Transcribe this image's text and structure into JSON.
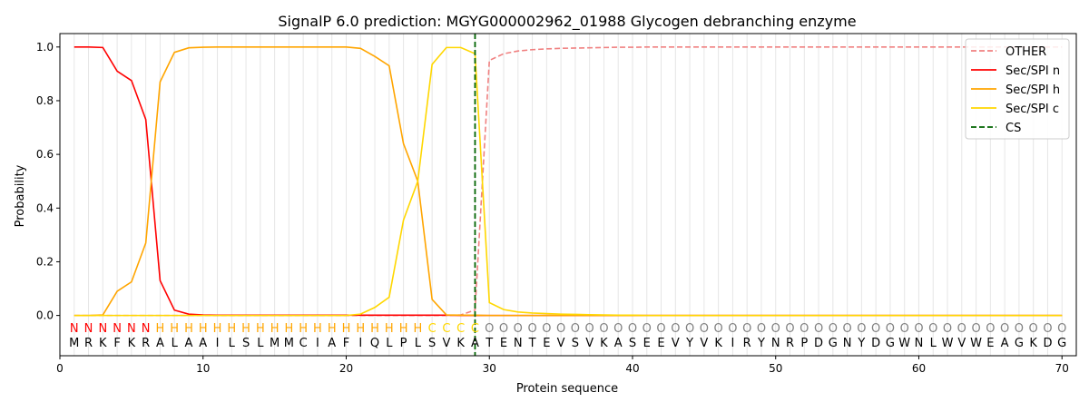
{
  "chart_data": {
    "type": "line",
    "title": "SignalP 6.0 prediction: MGYG000002962_01988 Glycogen debranching enzyme",
    "xlabel": "Protein sequence",
    "ylabel": "Probability",
    "xlim": [
      0,
      71
    ],
    "ylim": [
      -0.15,
      1.05
    ],
    "xticks": [
      0,
      10,
      20,
      30,
      40,
      50,
      60,
      70
    ],
    "yticks": [
      0.0,
      0.2,
      0.4,
      0.6,
      0.8,
      1.0
    ],
    "grid": "vertical lines at each residue",
    "legend_placement": "top-right",
    "x": [
      1,
      2,
      3,
      4,
      5,
      6,
      7,
      8,
      9,
      10,
      11,
      12,
      13,
      14,
      15,
      16,
      17,
      18,
      19,
      20,
      21,
      22,
      23,
      24,
      25,
      26,
      27,
      28,
      29,
      30,
      31,
      32,
      33,
      34,
      35,
      36,
      37,
      38,
      39,
      40,
      41,
      42,
      43,
      44,
      45,
      46,
      47,
      48,
      49,
      50,
      51,
      52,
      53,
      54,
      55,
      56,
      57,
      58,
      59,
      60,
      61,
      62,
      63,
      64,
      65,
      66,
      67,
      68,
      69,
      70
    ],
    "sequence": [
      "M",
      "R",
      "K",
      "F",
      "K",
      "R",
      "A",
      "L",
      "A",
      "A",
      "I",
      "L",
      "S",
      "L",
      "M",
      "M",
      "C",
      "I",
      "A",
      "F",
      "I",
      "Q",
      "L",
      "P",
      "L",
      "S",
      "V",
      "K",
      "A",
      "T",
      "E",
      "N",
      "T",
      "E",
      "V",
      "S",
      "V",
      "K",
      "A",
      "S",
      "E",
      "E",
      "V",
      "Y",
      "V",
      "K",
      "I",
      "R",
      "Y",
      "N",
      "R",
      "P",
      "D",
      "G",
      "N",
      "Y",
      "D",
      "G",
      "W",
      "N",
      "L",
      "W",
      "V",
      "W",
      "E",
      "A",
      "G",
      "K",
      "D",
      "G"
    ],
    "labels": [
      "N",
      "N",
      "N",
      "N",
      "N",
      "N",
      "H",
      "H",
      "H",
      "H",
      "H",
      "H",
      "H",
      "H",
      "H",
      "H",
      "H",
      "H",
      "H",
      "H",
      "H",
      "H",
      "H",
      "H",
      "H",
      "C",
      "C",
      "C",
      "C",
      "O",
      "O",
      "O",
      "O",
      "O",
      "O",
      "O",
      "O",
      "O",
      "O",
      "O",
      "O",
      "O",
      "O",
      "O",
      "O",
      "O",
      "O",
      "O",
      "O",
      "O",
      "O",
      "O",
      "O",
      "O",
      "O",
      "O",
      "O",
      "O",
      "O",
      "O",
      "O",
      "O",
      "O",
      "O",
      "O",
      "O",
      "O",
      "O",
      "O",
      "O"
    ],
    "label_colors": {
      "N": "#ff0000",
      "H": "#ffa500",
      "C": "#ffd700",
      "O": "#808080"
    },
    "series": [
      {
        "name": "OTHER",
        "color": "#f08080",
        "style": "dashed",
        "values": [
          0,
          0,
          0,
          0,
          0,
          0,
          0,
          0,
          0,
          0,
          0,
          0,
          0,
          0,
          0,
          0,
          0,
          0,
          0,
          0,
          0,
          0,
          0,
          0,
          0,
          0,
          0,
          0.002,
          0.02,
          0.95,
          0.975,
          0.985,
          0.99,
          0.993,
          0.995,
          0.996,
          0.997,
          0.998,
          0.999,
          0.999,
          1,
          1,
          1,
          1,
          1,
          1,
          1,
          1,
          1,
          1,
          1,
          1,
          1,
          1,
          1,
          1,
          1,
          1,
          1,
          1,
          1,
          1,
          1,
          1,
          1,
          1,
          1,
          1,
          1,
          1
        ]
      },
      {
        "name": "Sec/SPI n",
        "color": "#ff0000",
        "style": "solid",
        "values": [
          1.0,
          1.0,
          0.998,
          0.91,
          0.875,
          0.73,
          0.13,
          0.02,
          0.005,
          0.002,
          0.001,
          0.001,
          0.001,
          0.001,
          0.001,
          0.001,
          0.001,
          0.001,
          0.001,
          0.001,
          0.001,
          0.001,
          0.001,
          0.001,
          0.001,
          0.001,
          0.001,
          0,
          0,
          0,
          0,
          0,
          0,
          0,
          0,
          0,
          0,
          0,
          0,
          0,
          0,
          0,
          0,
          0,
          0,
          0,
          0,
          0,
          0,
          0,
          0,
          0,
          0,
          0,
          0,
          0,
          0,
          0,
          0,
          0,
          0,
          0,
          0,
          0,
          0,
          0,
          0,
          0,
          0,
          0
        ]
      },
      {
        "name": "Sec/SPI h",
        "color": "#ffa500",
        "style": "solid",
        "values": [
          0,
          0,
          0.002,
          0.09,
          0.125,
          0.27,
          0.87,
          0.98,
          0.997,
          0.999,
          1.0,
          1.0,
          1.0,
          1.0,
          1.0,
          1.0,
          1.0,
          1.0,
          1.0,
          1.0,
          0.995,
          0.965,
          0.93,
          0.64,
          0.5,
          0.06,
          0.002,
          0.001,
          0.001,
          0,
          0,
          0,
          0,
          0,
          0,
          0,
          0,
          0,
          0,
          0,
          0,
          0,
          0,
          0,
          0,
          0,
          0,
          0,
          0,
          0,
          0,
          0,
          0,
          0,
          0,
          0,
          0,
          0,
          0,
          0,
          0,
          0,
          0,
          0,
          0,
          0,
          0,
          0,
          0,
          0
        ]
      },
      {
        "name": "Sec/SPI c",
        "color": "#ffd700",
        "style": "solid",
        "values": [
          0,
          0,
          0,
          0,
          0,
          0,
          0,
          0,
          0,
          0,
          0,
          0,
          0,
          0,
          0,
          0,
          0,
          0,
          0,
          0,
          0.005,
          0.03,
          0.068,
          0.355,
          0.5,
          0.935,
          0.998,
          0.998,
          0.975,
          0.048,
          0.022,
          0.013,
          0.009,
          0.007,
          0.005,
          0.004,
          0.003,
          0.002,
          0.001,
          0.001,
          0,
          0,
          0,
          0,
          0,
          0,
          0,
          0,
          0,
          0,
          0,
          0,
          0,
          0,
          0,
          0,
          0,
          0,
          0,
          0,
          0,
          0,
          0,
          0,
          0,
          0,
          0,
          0,
          0,
          0
        ]
      }
    ],
    "cs_line": {
      "name": "CS",
      "x": 29,
      "color": "#006400",
      "style": "dashed"
    },
    "legend": [
      "OTHER",
      "Sec/SPI n",
      "Sec/SPI h",
      "Sec/SPI c",
      "CS"
    ]
  }
}
